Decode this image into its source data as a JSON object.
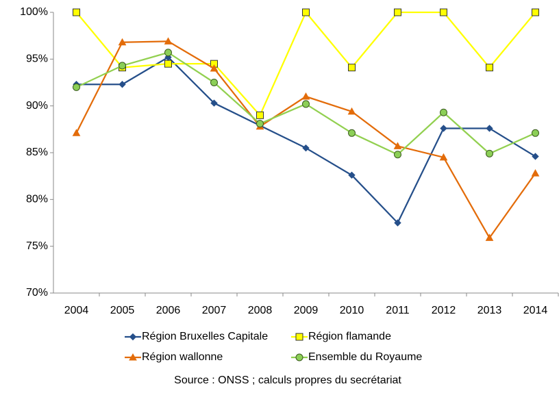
{
  "chart_data": {
    "type": "line",
    "categories": [
      "2004",
      "2005",
      "2006",
      "2007",
      "2008",
      "2009",
      "2010",
      "2011",
      "2012",
      "2013",
      "2014"
    ],
    "series": [
      {
        "name": "Région Bruxelles Capitale",
        "color": "#254f8a",
        "marker": "diamond",
        "marker_fill": "#254f8a",
        "marker_stroke": "#254f8a",
        "values": [
          92.3,
          92.3,
          95.2,
          90.3,
          87.9,
          85.5,
          82.6,
          77.5,
          87.6,
          87.6,
          84.6
        ]
      },
      {
        "name": "Région flamande",
        "color": "#ffff00",
        "marker": "square",
        "marker_fill": "#ffff00",
        "marker_stroke": "#333333",
        "values": [
          100,
          94.1,
          94.5,
          94.5,
          89.0,
          100,
          94.1,
          100,
          100,
          94.1,
          100
        ]
      },
      {
        "name": "Région wallonne",
        "color": "#e36c0a",
        "marker": "triangle",
        "marker_fill": "#e36c0a",
        "marker_stroke": "#e36c0a",
        "values": [
          87.1,
          96.8,
          96.9,
          94.0,
          87.8,
          91.0,
          89.4,
          85.7,
          84.5,
          75.9,
          82.8
        ]
      },
      {
        "name": "Ensemble du Royaume",
        "color": "#92d050",
        "marker": "circle",
        "marker_fill": "#8ccf57",
        "marker_stroke": "#3a5a1e",
        "values": [
          92.0,
          94.3,
          95.7,
          92.5,
          88.1,
          90.2,
          87.1,
          84.8,
          89.3,
          84.9,
          87.1
        ]
      }
    ],
    "ylim": [
      70,
      100
    ],
    "yticks": [
      {
        "value": 70,
        "label": "70%"
      },
      {
        "value": 75,
        "label": "75%"
      },
      {
        "value": 80,
        "label": "80%"
      },
      {
        "value": 85,
        "label": "85%"
      },
      {
        "value": 90,
        "label": "90%"
      },
      {
        "value": 95,
        "label": "95%"
      },
      {
        "value": 100,
        "label": "100%"
      }
    ],
    "grid": false,
    "legend": "bottom",
    "source": "Source : ONSS ; calculs propres du secrétariat"
  }
}
